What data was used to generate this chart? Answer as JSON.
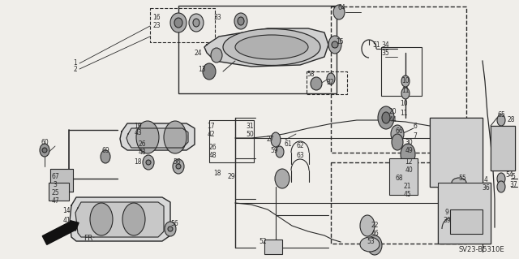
{
  "bg_color": "#f0eeea",
  "line_color": "#2a2a2a",
  "watermark": "SV23-B5310E",
  "figsize": [
    6.4,
    3.19
  ],
  "dpi": 100
}
